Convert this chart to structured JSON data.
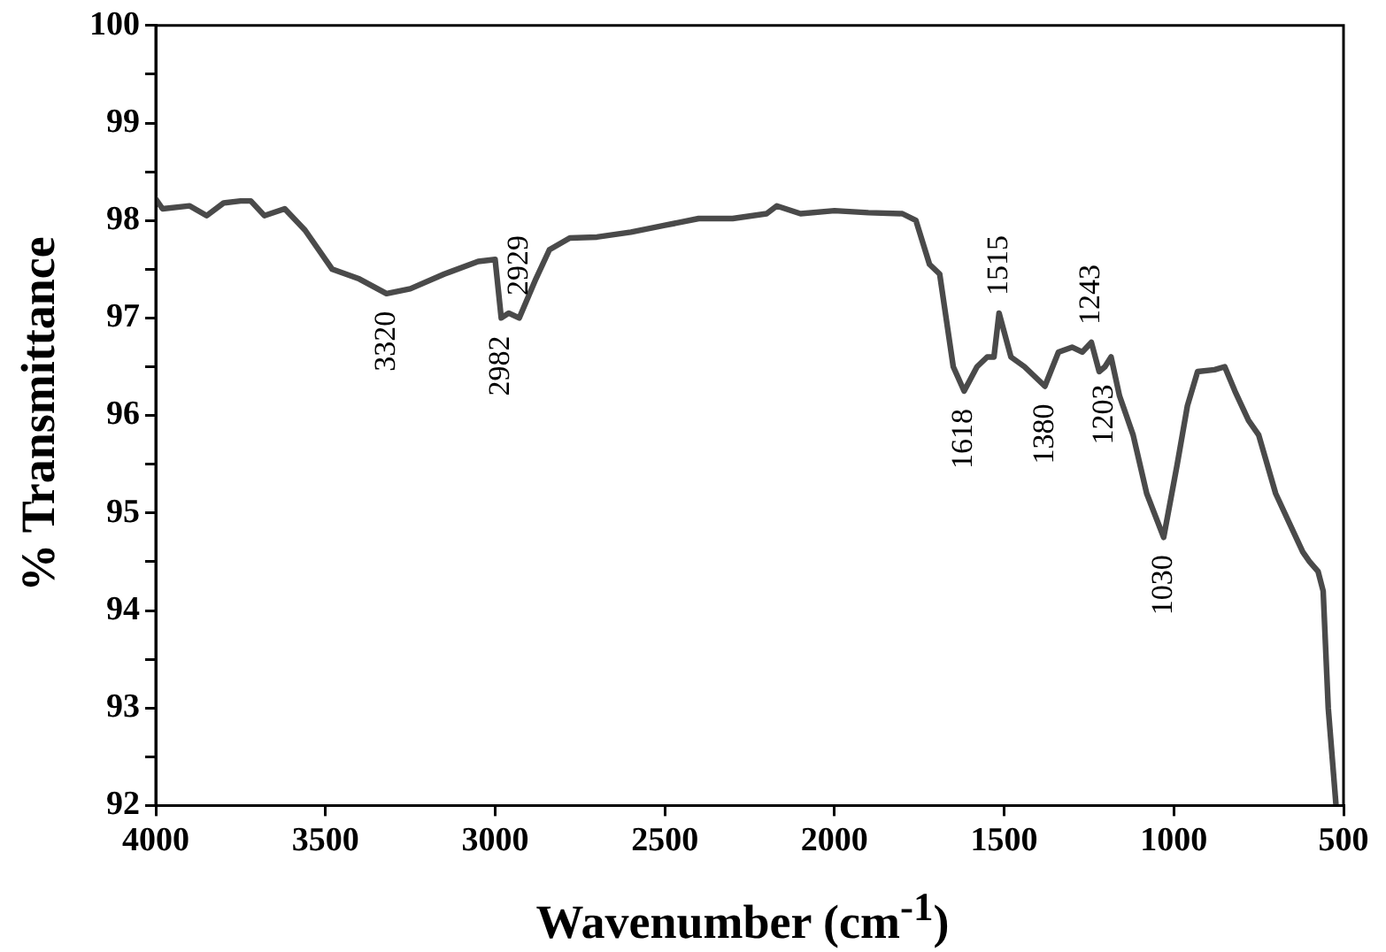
{
  "chart_data": {
    "type": "line",
    "xlabel": "Wavenumber (cm$^{-1}$)",
    "ylabel": "% Transmittance",
    "xlim": [
      4000,
      500
    ],
    "xticks": [
      4000,
      3500,
      3000,
      2500,
      2000,
      1500,
      1000,
      500
    ],
    "ylim": [
      92,
      100
    ],
    "yticks": [
      92,
      {
        "value": 92.5,
        "label": null
      },
      93,
      {
        "value": 93.5,
        "label": null
      },
      94,
      {
        "value": 94.5,
        "label": null
      },
      95,
      {
        "value": 95.5,
        "label": null
      },
      96,
      {
        "value": 96.5,
        "label": null
      },
      97,
      {
        "value": 97.5,
        "label": null
      },
      98,
      {
        "value": 98.5,
        "label": null
      },
      99,
      {
        "value": 99.5,
        "label": null
      },
      100
    ],
    "grid": false,
    "legend": false,
    "marker": "none",
    "line_style": "solid",
    "series": [
      {
        "color": "#4a4a4a",
        "x": [
          4000,
          3980,
          3900,
          3850,
          3800,
          3750,
          3720,
          3680,
          3620,
          3560,
          3480,
          3400,
          3320,
          3250,
          3150,
          3050,
          3000,
          2982,
          2960,
          2929,
          2880,
          2840,
          2780,
          2700,
          2600,
          2500,
          2400,
          2300,
          2200,
          2170,
          2100,
          2000,
          1900,
          1800,
          1760,
          1720,
          1690,
          1650,
          1618,
          1580,
          1550,
          1530,
          1515,
          1480,
          1440,
          1380,
          1340,
          1300,
          1270,
          1243,
          1220,
          1203,
          1185,
          1160,
          1120,
          1080,
          1030,
          990,
          960,
          930,
          880,
          850,
          820,
          780,
          750,
          700,
          660,
          620,
          600,
          575,
          560,
          545,
          522
        ],
        "values": [
          98.22,
          98.12,
          98.15,
          98.05,
          98.18,
          98.2,
          98.2,
          98.05,
          98.12,
          97.9,
          97.5,
          97.4,
          97.25,
          97.3,
          97.45,
          97.58,
          97.6,
          97.0,
          97.05,
          97.0,
          97.4,
          97.7,
          97.82,
          97.83,
          97.88,
          97.95,
          98.02,
          98.02,
          98.07,
          98.15,
          98.07,
          98.1,
          98.08,
          98.07,
          98.0,
          97.55,
          97.45,
          96.5,
          96.25,
          96.5,
          96.6,
          96.6,
          97.05,
          96.6,
          96.5,
          96.3,
          96.65,
          96.7,
          96.65,
          96.75,
          96.45,
          96.5,
          96.6,
          96.2,
          95.8,
          95.2,
          94.75,
          95.5,
          96.1,
          96.45,
          96.47,
          96.5,
          96.25,
          95.95,
          95.8,
          95.2,
          94.9,
          94.6,
          94.5,
          94.4,
          94.2,
          93.0,
          92.0
        ]
      }
    ],
    "annotations": [
      {
        "text": "3320",
        "x": 3320,
        "y": 97.25
      },
      {
        "text": "2982",
        "x": 2982,
        "y": 97.0
      },
      {
        "text": "2929",
        "x": 2929,
        "y": 97.05
      },
      {
        "text": "1618",
        "x": 1618,
        "y": 96.25
      },
      {
        "text": "1515",
        "x": 1515,
        "y": 97.05
      },
      {
        "text": "1380",
        "x": 1380,
        "y": 96.3
      },
      {
        "text": "1243",
        "x": 1243,
        "y": 96.75
      },
      {
        "text": "1203",
        "x": 1203,
        "y": 96.5
      },
      {
        "text": "1030",
        "x": 1030,
        "y": 94.75
      }
    ]
  }
}
